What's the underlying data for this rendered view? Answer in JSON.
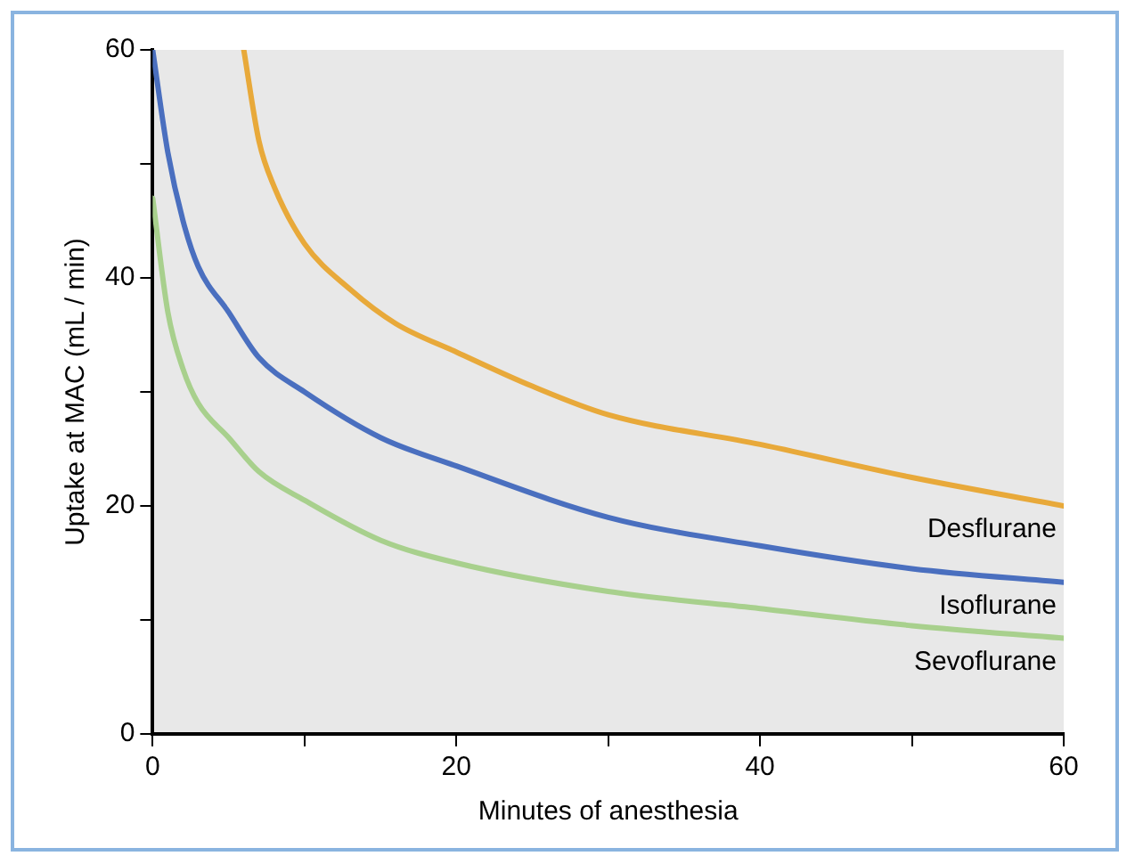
{
  "chart_data": {
    "type": "line",
    "xlabel": "Minutes of anesthesia",
    "ylabel": "Uptake at MAC (mL / min)",
    "xlim": [
      0,
      60
    ],
    "ylim": [
      0,
      60
    ],
    "xticks": [
      0,
      {
        "value": 10,
        "label": null
      },
      20,
      {
        "value": 30,
        "label": null
      },
      40,
      {
        "value": 50,
        "label": null
      },
      60
    ],
    "yticks": [
      0,
      {
        "value": 10,
        "label": null
      },
      20,
      {
        "value": 30,
        "label": null
      },
      40,
      {
        "value": 50,
        "label": null
      },
      60
    ],
    "grid": false,
    "legend": false,
    "marker": "none",
    "line_style": "solid",
    "series": [
      {
        "name": "Desflurane",
        "color": "#e8a93a",
        "x": [
          6,
          7,
          8,
          10,
          13,
          16,
          20,
          25,
          30,
          40,
          50,
          60
        ],
        "values": [
          60,
          52,
          48,
          43,
          39,
          36,
          33.5,
          30.5,
          28,
          25.4,
          22.5,
          20
        ]
      },
      {
        "name": "Isoflurane",
        "color": "#4a6fbf",
        "x": [
          0,
          1,
          2,
          3,
          5,
          7,
          10,
          15,
          20,
          30,
          40,
          50,
          60
        ],
        "values": [
          60,
          51,
          45,
          41,
          37,
          33,
          30,
          26,
          23.5,
          19,
          16.5,
          14.5,
          13.3
        ]
      },
      {
        "name": "Sevoflurane",
        "color": "#a8d08d",
        "x": [
          0,
          1,
          2,
          3,
          5,
          7,
          10,
          15,
          20,
          30,
          40,
          50,
          60
        ],
        "values": [
          47,
          37,
          32,
          29,
          26,
          23,
          20.5,
          17,
          15,
          12.5,
          11,
          9.5,
          8.4
        ]
      }
    ]
  }
}
